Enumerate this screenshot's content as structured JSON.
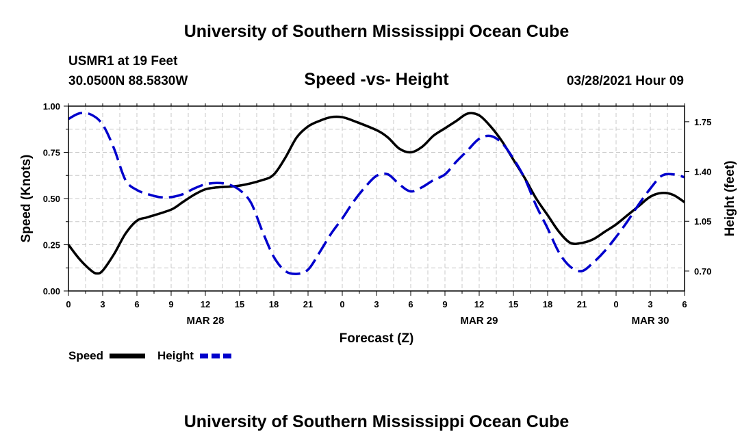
{
  "header": {
    "title": "University of Southern Mississippi Ocean Cube",
    "station": "USMR1 at 19 Feet",
    "location": "30.0500N  88.5830W",
    "subtitle": "Speed -vs- Height",
    "datetime": "03/28/2021 Hour 09"
  },
  "footer": {
    "title": "University of Southern Mississippi Ocean Cube"
  },
  "colors": {
    "speed": "#000000",
    "height": "#0000cc",
    "grid": "#c8c8c8"
  },
  "chart_data": {
    "type": "line",
    "title": "Speed -vs- Height",
    "xlabel": "Forecast (Z)",
    "ylabel": "Speed (Knots)",
    "y2label": "Height (feet)",
    "x_range_hours": [
      0,
      54
    ],
    "ylim": [
      0,
      1
    ],
    "y2lim": [
      0.56,
      1.86
    ],
    "x_ticks": [
      {
        "h": 0,
        "label": "0"
      },
      {
        "h": 3,
        "label": "3"
      },
      {
        "h": 6,
        "label": "6"
      },
      {
        "h": 9,
        "label": "9"
      },
      {
        "h": 12,
        "label": "12"
      },
      {
        "h": 15,
        "label": "15"
      },
      {
        "h": 18,
        "label": "18"
      },
      {
        "h": 21,
        "label": "21"
      },
      {
        "h": 24,
        "label": "0"
      },
      {
        "h": 27,
        "label": "3"
      },
      {
        "h": 30,
        "label": "6"
      },
      {
        "h": 33,
        "label": "9"
      },
      {
        "h": 36,
        "label": "12"
      },
      {
        "h": 39,
        "label": "15"
      },
      {
        "h": 42,
        "label": "18"
      },
      {
        "h": 45,
        "label": "21"
      },
      {
        "h": 48,
        "label": "0"
      },
      {
        "h": 51,
        "label": "3"
      },
      {
        "h": 54,
        "label": "6"
      }
    ],
    "date_labels": [
      {
        "h": 12,
        "label": "MAR 28"
      },
      {
        "h": 36,
        "label": "MAR 29"
      },
      {
        "h": 51,
        "label": "MAR 30"
      }
    ],
    "y_ticks": [
      {
        "v": 0.0,
        "label": "0.00"
      },
      {
        "v": 0.25,
        "label": "0.25"
      },
      {
        "v": 0.5,
        "label": "0.50"
      },
      {
        "v": 0.75,
        "label": "0.75"
      },
      {
        "v": 1.0,
        "label": "1.00"
      }
    ],
    "y2_ticks": [
      {
        "v": 0.7,
        "label": "0.70"
      },
      {
        "v": 1.05,
        "label": "1.05"
      },
      {
        "v": 1.4,
        "label": "1.40"
      },
      {
        "v": 1.75,
        "label": "1.75"
      }
    ],
    "series": [
      {
        "name": "Speed",
        "axis": "left",
        "style": "solid",
        "points": [
          [
            0,
            0.25
          ],
          [
            1,
            0.17
          ],
          [
            2,
            0.11
          ],
          [
            2.5,
            0.095
          ],
          [
            3,
            0.11
          ],
          [
            4,
            0.2
          ],
          [
            5,
            0.31
          ],
          [
            6,
            0.38
          ],
          [
            7,
            0.4
          ],
          [
            9,
            0.44
          ],
          [
            10,
            0.48
          ],
          [
            11,
            0.52
          ],
          [
            12,
            0.55
          ],
          [
            13,
            0.56
          ],
          [
            15,
            0.57
          ],
          [
            17,
            0.6
          ],
          [
            18,
            0.63
          ],
          [
            19,
            0.72
          ],
          [
            20,
            0.83
          ],
          [
            21,
            0.89
          ],
          [
            22,
            0.92
          ],
          [
            23,
            0.94
          ],
          [
            24,
            0.94
          ],
          [
            25,
            0.92
          ],
          [
            27,
            0.87
          ],
          [
            28,
            0.83
          ],
          [
            29,
            0.77
          ],
          [
            30,
            0.75
          ],
          [
            31,
            0.78
          ],
          [
            32,
            0.84
          ],
          [
            33,
            0.88
          ],
          [
            34,
            0.92
          ],
          [
            35,
            0.96
          ],
          [
            36,
            0.95
          ],
          [
            37,
            0.89
          ],
          [
            38,
            0.81
          ],
          [
            39,
            0.71
          ],
          [
            40,
            0.61
          ],
          [
            41,
            0.5
          ],
          [
            42,
            0.41
          ],
          [
            43,
            0.32
          ],
          [
            44,
            0.26
          ],
          [
            45,
            0.26
          ],
          [
            46,
            0.28
          ],
          [
            47,
            0.32
          ],
          [
            48,
            0.36
          ],
          [
            49,
            0.41
          ],
          [
            50,
            0.46
          ],
          [
            51,
            0.51
          ],
          [
            52,
            0.53
          ],
          [
            53,
            0.52
          ],
          [
            54,
            0.48
          ]
        ]
      },
      {
        "name": "Height",
        "axis": "right",
        "style": "dashed",
        "points": [
          [
            0,
            1.77
          ],
          [
            1,
            1.81
          ],
          [
            2,
            1.8
          ],
          [
            3,
            1.73
          ],
          [
            4,
            1.56
          ],
          [
            5,
            1.34
          ],
          [
            6,
            1.27
          ],
          [
            7,
            1.24
          ],
          [
            8,
            1.22
          ],
          [
            9,
            1.22
          ],
          [
            10,
            1.24
          ],
          [
            11,
            1.28
          ],
          [
            12,
            1.31
          ],
          [
            13,
            1.32
          ],
          [
            14,
            1.31
          ],
          [
            15,
            1.27
          ],
          [
            16,
            1.18
          ],
          [
            17,
            0.98
          ],
          [
            18,
            0.8
          ],
          [
            19,
            0.7
          ],
          [
            20,
            0.68
          ],
          [
            21,
            0.71
          ],
          [
            22,
            0.83
          ],
          [
            23,
            0.96
          ],
          [
            24,
            1.07
          ],
          [
            25,
            1.19
          ],
          [
            26,
            1.29
          ],
          [
            27,
            1.37
          ],
          [
            28,
            1.38
          ],
          [
            29,
            1.31
          ],
          [
            30,
            1.26
          ],
          [
            31,
            1.29
          ],
          [
            32,
            1.34
          ],
          [
            33,
            1.38
          ],
          [
            34,
            1.47
          ],
          [
            35,
            1.55
          ],
          [
            36,
            1.63
          ],
          [
            37,
            1.65
          ],
          [
            38,
            1.6
          ],
          [
            39,
            1.49
          ],
          [
            40,
            1.35
          ],
          [
            41,
            1.16
          ],
          [
            42,
            1.0
          ],
          [
            43,
            0.83
          ],
          [
            44,
            0.73
          ],
          [
            45,
            0.7
          ],
          [
            46,
            0.76
          ],
          [
            47,
            0.84
          ],
          [
            48,
            0.94
          ],
          [
            49,
            1.05
          ],
          [
            50,
            1.17
          ],
          [
            51,
            1.28
          ],
          [
            52,
            1.37
          ],
          [
            53,
            1.38
          ],
          [
            54,
            1.36
          ]
        ]
      }
    ],
    "legend": [
      {
        "name": "Speed",
        "style": "solid"
      },
      {
        "name": "Height",
        "style": "dashed"
      }
    ],
    "legend_position": "bottom-left"
  }
}
